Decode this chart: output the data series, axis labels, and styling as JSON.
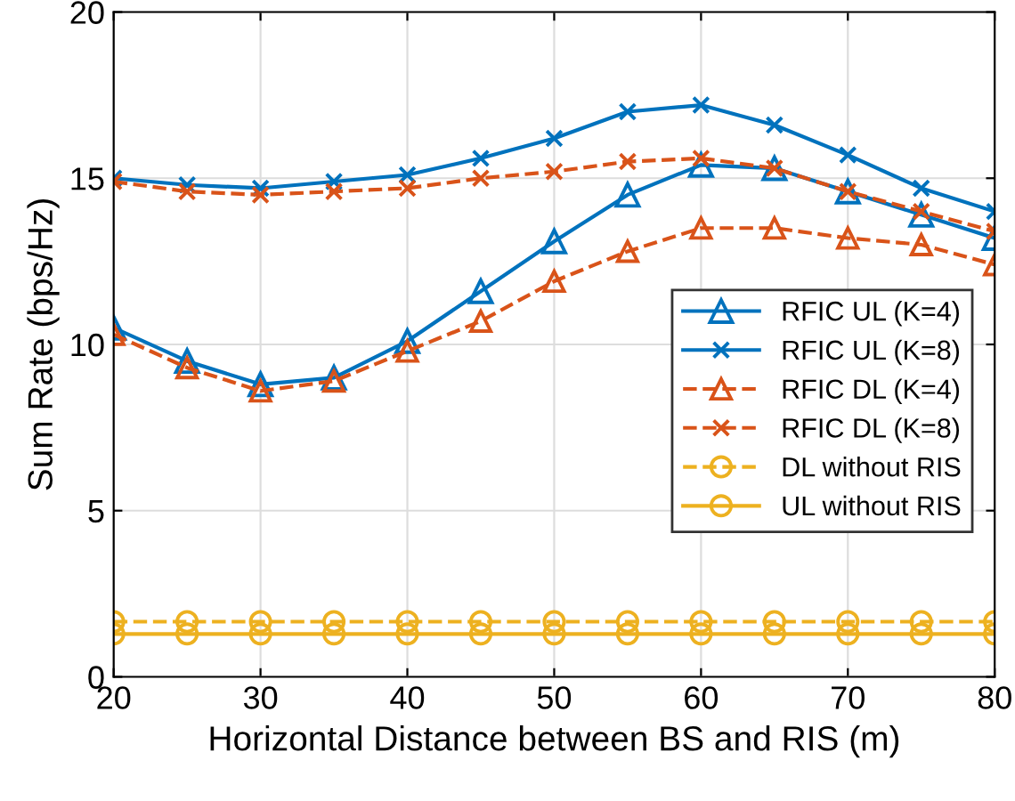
{
  "chart_data": {
    "type": "line",
    "xlabel": "Horizontal Distance between BS and RIS (m)",
    "ylabel": "Sum Rate (bps/Hz)",
    "x": [
      20,
      25,
      30,
      35,
      40,
      45,
      50,
      55,
      60,
      65,
      70,
      75,
      80
    ],
    "xlim": [
      20,
      80
    ],
    "xticks": [
      20,
      30,
      40,
      50,
      60,
      70,
      80
    ],
    "ylim": [
      0,
      20
    ],
    "yticks": [
      0,
      5,
      10,
      15,
      20
    ],
    "grid": true,
    "legend": "center right",
    "series": [
      {
        "name": "RFIC UL (K=4)",
        "color": "#0072bd",
        "marker": "triangle",
        "line_style": "solid",
        "values": [
          10.5,
          9.5,
          8.8,
          9.0,
          10.1,
          11.6,
          13.1,
          14.5,
          15.4,
          15.3,
          14.6,
          13.9,
          13.2
        ]
      },
      {
        "name": "RFIC UL (K=8)",
        "color": "#0072bd",
        "marker": "cross",
        "line_style": "solid",
        "values": [
          15.0,
          14.8,
          14.7,
          14.9,
          15.1,
          15.6,
          16.2,
          17.0,
          17.2,
          16.6,
          15.7,
          14.7,
          14.0
        ]
      },
      {
        "name": "RFIC DL (K=4)",
        "color": "#d95319",
        "marker": "triangle",
        "line_style": "dashed",
        "values": [
          10.3,
          9.3,
          8.6,
          8.9,
          9.8,
          10.7,
          11.9,
          12.8,
          13.5,
          13.5,
          13.2,
          13.0,
          12.4
        ]
      },
      {
        "name": "RFIC DL (K=8)",
        "color": "#d95319",
        "marker": "cross",
        "line_style": "dashed",
        "values": [
          14.9,
          14.6,
          14.5,
          14.6,
          14.7,
          15.0,
          15.2,
          15.5,
          15.6,
          15.3,
          14.6,
          14.0,
          13.4
        ]
      },
      {
        "name": "DL without RIS",
        "color": "#edb120",
        "marker": "circle",
        "line_style": "dashed",
        "values": [
          1.66,
          1.66,
          1.66,
          1.66,
          1.66,
          1.66,
          1.66,
          1.66,
          1.66,
          1.66,
          1.66,
          1.66,
          1.66
        ]
      },
      {
        "name": "UL without RIS",
        "color": "#edb120",
        "marker": "circle",
        "line_style": "solid",
        "values": [
          1.29,
          1.29,
          1.29,
          1.29,
          1.29,
          1.29,
          1.29,
          1.29,
          1.29,
          1.29,
          1.29,
          1.29,
          1.29
        ]
      }
    ]
  }
}
